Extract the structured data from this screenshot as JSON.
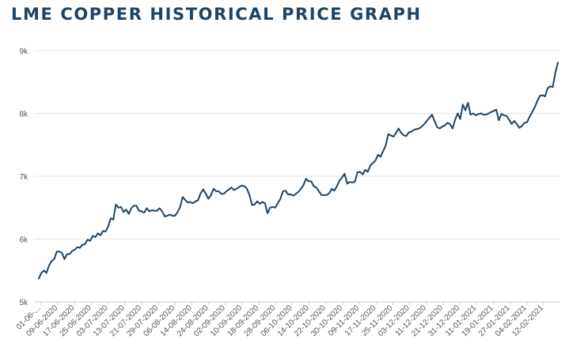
{
  "chart_data": {
    "type": "line",
    "title": "LME COPPER HISTORICAL PRICE GRAPH",
    "xlabel": "",
    "ylabel": "",
    "ylim": [
      5000,
      9000
    ],
    "grid": true,
    "line_color": "#1d4466",
    "y_ticks": [
      {
        "value": 5000,
        "label": "5k"
      },
      {
        "value": 6000,
        "label": "6k"
      },
      {
        "value": 7000,
        "label": "7k"
      },
      {
        "value": 8000,
        "label": "8k"
      },
      {
        "value": 9000,
        "label": "9k"
      }
    ],
    "x_tick_labels": [
      "01-06-…",
      "09-06-2020",
      "17-06-2020",
      "25-06-2020",
      "03-07-2020",
      "13-07-2020",
      "21-07-2020",
      "29-07-2020",
      "06-08-2020",
      "14-08-2020",
      "24-08-2020",
      "02-09-2020",
      "10-09-2020",
      "18-09-2020",
      "28-09-2020",
      "06-10-2020",
      "14-10-2020",
      "22-10-2020",
      "30-10-2020",
      "09-11-2020",
      "17-11-2020",
      "25-11-2020",
      "03-12-2020",
      "11-12-2020",
      "21-12-2020",
      "31-12-2020",
      "11-01-2021",
      "19-01-2021",
      "27-01-2021",
      "04-02-2021",
      "12-02-2021"
    ],
    "series": [
      {
        "values": [
          5370,
          5460,
          5500,
          5460,
          5580,
          5650,
          5680,
          5800,
          5800,
          5780,
          5680,
          5760,
          5760,
          5810,
          5830,
          5870,
          5860,
          5910,
          5920,
          5990,
          5970,
          6050,
          6030,
          6090,
          6060,
          6130,
          6120,
          6200,
          6330,
          6310,
          6550,
          6500,
          6510,
          6430,
          6470,
          6400,
          6490,
          6530,
          6530,
          6450,
          6440,
          6420,
          6490,
          6440,
          6460,
          6450,
          6450,
          6490,
          6440,
          6360,
          6370,
          6390,
          6370,
          6370,
          6430,
          6510,
          6670,
          6620,
          6580,
          6590,
          6570,
          6600,
          6620,
          6730,
          6790,
          6720,
          6640,
          6700,
          6800,
          6760,
          6760,
          6720,
          6720,
          6760,
          6790,
          6820,
          6780,
          6800,
          6830,
          6850,
          6840,
          6800,
          6700,
          6540,
          6550,
          6600,
          6560,
          6590,
          6570,
          6410,
          6500,
          6510,
          6500,
          6570,
          6640,
          6760,
          6770,
          6710,
          6710,
          6690,
          6720,
          6750,
          6800,
          6860,
          6960,
          6920,
          6920,
          6840,
          6820,
          6760,
          6700,
          6700,
          6700,
          6730,
          6800,
          6770,
          6840,
          6930,
          6980,
          7040,
          6880,
          6910,
          6900,
          6910,
          7060,
          7070,
          7030,
          7100,
          7070,
          7170,
          7210,
          7250,
          7340,
          7310,
          7400,
          7490,
          7670,
          7650,
          7630,
          7690,
          7760,
          7690,
          7650,
          7640,
          7700,
          7710,
          7740,
          7750,
          7760,
          7790,
          7830,
          7880,
          7930,
          7980,
          7880,
          7780,
          7760,
          7790,
          7810,
          7850,
          7830,
          7760,
          7900,
          8000,
          7910,
          8140,
          8050,
          8170,
          7980,
          8000,
          7970,
          7990,
          8000,
          7980,
          7980,
          8000,
          8020,
          8040,
          8060,
          7890,
          7990,
          7970,
          7960,
          7900,
          7830,
          7880,
          7830,
          7770,
          7800,
          7850,
          7860,
          7950,
          8020,
          8100,
          8200,
          8280,
          8290,
          8270,
          8400,
          8430,
          8420,
          8650,
          8810
        ]
      }
    ]
  }
}
